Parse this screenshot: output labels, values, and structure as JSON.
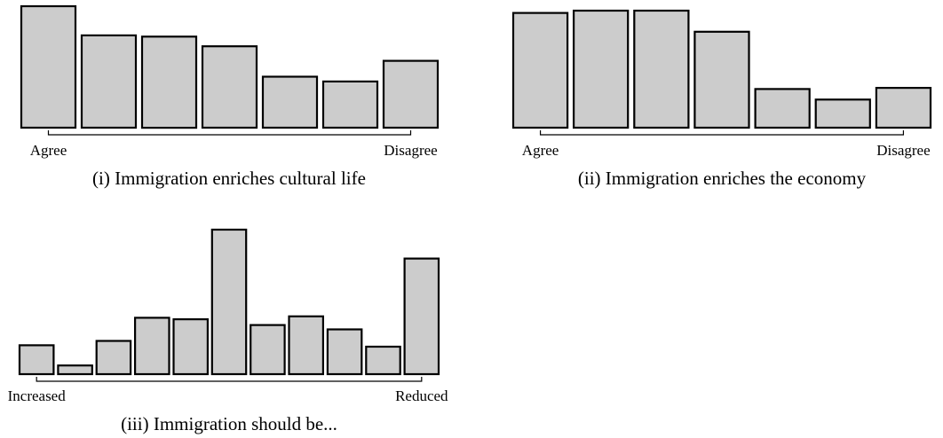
{
  "chart_data": [
    {
      "type": "bar",
      "caption": "(i) Immigration enriches cultural life",
      "left_label": "Agree",
      "right_label": "Disagree",
      "categories": [
        "1",
        "2",
        "3",
        "4",
        "5",
        "6",
        "7"
      ],
      "values": [
        1.0,
        0.76,
        0.75,
        0.67,
        0.42,
        0.38,
        0.55
      ],
      "ylim": [
        0,
        1
      ]
    },
    {
      "type": "bar",
      "caption": "(ii) Immigration enriches the economy",
      "left_label": "Agree",
      "right_label": "Disagree",
      "categories": [
        "1",
        "2",
        "3",
        "4",
        "5",
        "6",
        "7"
      ],
      "values": [
        0.98,
        1.0,
        1.0,
        0.82,
        0.33,
        0.24,
        0.34
      ],
      "ylim": [
        0,
        1
      ]
    },
    {
      "type": "bar",
      "caption": "(iii) Immigration should be...",
      "left_label": "Increased",
      "right_label": "Reduced",
      "categories": [
        "1",
        "2",
        "3",
        "4",
        "5",
        "6",
        "7",
        "8",
        "9",
        "10",
        "11"
      ],
      "values": [
        0.2,
        0.06,
        0.23,
        0.39,
        0.38,
        1.0,
        0.34,
        0.4,
        0.31,
        0.19,
        0.8
      ],
      "ylim": [
        0,
        1
      ]
    }
  ]
}
